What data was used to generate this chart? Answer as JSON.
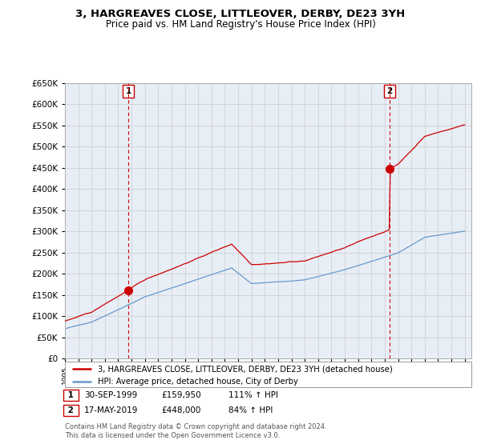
{
  "title": "3, HARGREAVES CLOSE, LITTLEOVER, DERBY, DE23 3YH",
  "subtitle": "Price paid vs. HM Land Registry's House Price Index (HPI)",
  "ytick_values": [
    0,
    50000,
    100000,
    150000,
    200000,
    250000,
    300000,
    350000,
    400000,
    450000,
    500000,
    550000,
    600000,
    650000
  ],
  "xmin": 1995.0,
  "xmax": 2025.5,
  "ymin": 0,
  "ymax": 650000,
  "sale1_date": 1999.75,
  "sale1_price": 159950,
  "sale2_date": 2019.37,
  "sale2_price": 448000,
  "legend_line1": "3, HARGREAVES CLOSE, LITTLEOVER, DERBY, DE23 3YH (detached house)",
  "legend_line2": "HPI: Average price, detached house, City of Derby",
  "footer": "Contains HM Land Registry data © Crown copyright and database right 2024.\nThis data is licensed under the Open Government Licence v3.0.",
  "line_color_red": "#cc0000",
  "line_color_blue": "#6699cc",
  "vline_color": "#cc0000",
  "background_color": "#ffffff",
  "grid_color": "#cccccc",
  "chart_bg": "#e8eef5"
}
